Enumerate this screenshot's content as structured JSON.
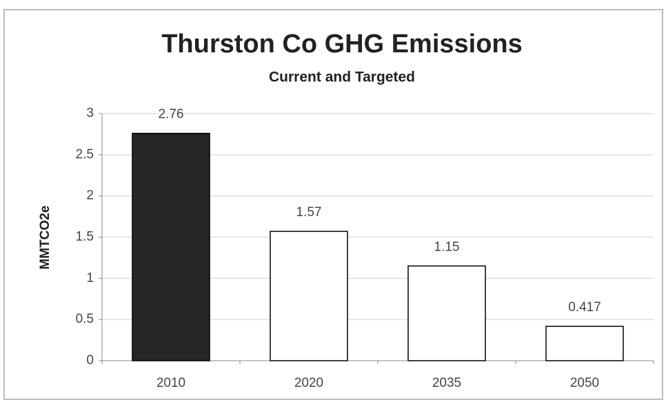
{
  "chart_data": {
    "type": "bar",
    "title": "Thurston Co GHG Emissions",
    "subtitle": "Current and Targeted",
    "y_label": "MMTCO2e",
    "categories": [
      "2010",
      "2020",
      "2035",
      "2050"
    ],
    "values": [
      2.76,
      1.57,
      1.15,
      0.417
    ],
    "colors": [
      "#262626",
      "#ffffff",
      "#ffffff",
      "#ffffff"
    ],
    "edgecolor": "#000000",
    "ylim": [
      0,
      3
    ],
    "yticks": [
      0,
      0.5,
      1,
      1.5,
      2,
      2.5,
      3
    ],
    "grid": true
  }
}
